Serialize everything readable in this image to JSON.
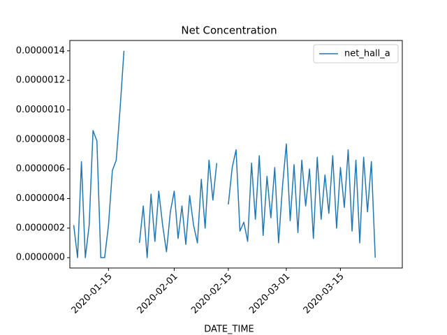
{
  "chart_data": {
    "type": "line",
    "title": "Net Concentration",
    "xlabel": "DATE_TIME",
    "x": [
      "2020-01-06",
      "2020-01-07",
      "2020-01-08",
      "2020-01-09",
      "2020-01-10",
      "2020-01-11",
      "2020-01-12",
      "2020-01-13",
      "2020-01-14",
      "2020-01-15",
      "2020-01-16",
      "2020-01-17",
      "2020-01-18",
      "2020-01-19",
      "2020-01-20",
      "2020-01-21",
      "2020-01-22",
      "2020-01-23",
      "2020-01-24",
      "2020-01-25",
      "2020-01-26",
      "2020-01-27",
      "2020-01-28",
      "2020-01-29",
      "2020-01-30",
      "2020-01-31",
      "2020-02-01",
      "2020-02-02",
      "2020-02-03",
      "2020-02-04",
      "2020-02-05",
      "2020-02-06",
      "2020-02-07",
      "2020-02-08",
      "2020-02-09",
      "2020-02-10",
      "2020-02-11",
      "2020-02-12",
      "2020-02-13",
      "2020-02-14",
      "2020-02-15",
      "2020-02-16",
      "2020-02-17",
      "2020-02-18",
      "2020-02-19",
      "2020-02-20",
      "2020-02-21",
      "2020-02-22",
      "2020-02-23",
      "2020-02-24",
      "2020-02-25",
      "2020-02-26",
      "2020-02-27",
      "2020-02-28",
      "2020-02-29",
      "2020-03-01",
      "2020-03-02",
      "2020-03-03",
      "2020-03-04",
      "2020-03-05",
      "2020-03-06",
      "2020-03-07",
      "2020-03-08",
      "2020-03-09",
      "2020-03-10",
      "2020-03-11",
      "2020-03-12",
      "2020-03-13",
      "2020-03-14",
      "2020-03-15",
      "2020-03-16",
      "2020-03-17",
      "2020-03-18",
      "2020-03-19",
      "2020-03-20",
      "2020-03-21",
      "2020-03-22",
      "2020-03-23",
      "2020-03-24"
    ],
    "series": [
      {
        "name": "net_hall_a",
        "color": "#1f77b4",
        "values": [
          2.2e-07,
          0,
          6.5e-07,
          0,
          2.2e-07,
          8.6e-07,
          7.9e-07,
          0,
          0,
          2.2e-07,
          5.9e-07,
          6.6e-07,
          1.01e-06,
          1.4e-06,
          null,
          null,
          null,
          1e-07,
          3.5e-07,
          0,
          4.3e-07,
          1.1e-07,
          4.5e-07,
          2.2e-07,
          4e-08,
          3.1e-07,
          4.5e-07,
          1.3e-07,
          3.5e-07,
          9e-08,
          4.2e-07,
          2.2e-07,
          1e-07,
          5.3e-07,
          2e-07,
          6.6e-07,
          3.9e-07,
          6.4e-07,
          null,
          null,
          3.6e-07,
          6.1e-07,
          7.3e-07,
          1.8e-07,
          2.4e-07,
          1.1e-07,
          6.4e-07,
          2.6e-07,
          6.9e-07,
          1.5e-07,
          5.5e-07,
          2.7e-07,
          6.1e-07,
          1e-07,
          4.8e-07,
          7.7e-07,
          2.5e-07,
          6.3e-07,
          1.7e-07,
          6.6e-07,
          3.5e-07,
          6e-07,
          1.3e-07,
          6.8e-07,
          2.6e-07,
          5.6e-07,
          3e-07,
          6.9e-07,
          2e-07,
          6.1e-07,
          3.4e-07,
          7.3e-07,
          1.8e-07,
          6.6e-07,
          1e-07,
          6.8e-07,
          3.1e-07,
          6.5e-07,
          0
        ]
      }
    ],
    "xlim": [
      "2020-01-05",
      "2020-03-31"
    ],
    "xticks": [
      "2020-01-15",
      "2020-02-01",
      "2020-02-15",
      "2020-03-01",
      "2020-03-15"
    ],
    "ylim": [
      -7e-08,
      1.47e-06
    ],
    "yticks": [
      {
        "value": 0,
        "label": "0.0000000"
      },
      {
        "value": 2e-07,
        "label": "0.0000002"
      },
      {
        "value": 4e-07,
        "label": "0.0000004"
      },
      {
        "value": 6e-07,
        "label": "0.0000006"
      },
      {
        "value": 8e-07,
        "label": "0.0000008"
      },
      {
        "value": 1e-06,
        "label": "0.0000010"
      },
      {
        "value": 1.2e-06,
        "label": "0.0000012"
      },
      {
        "value": 1.4e-06,
        "label": "0.0000014"
      }
    ],
    "legend": "upper right"
  }
}
